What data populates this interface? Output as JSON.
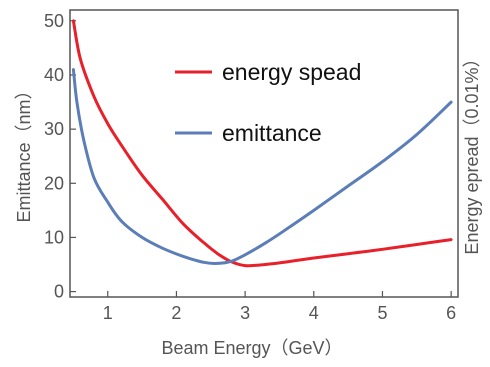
{
  "chart_data": {
    "type": "line",
    "xlabel": "Beam Energy（GeV）",
    "ylabel_left": "Emittance（nm）",
    "ylabel_right": "Energy epread（0.01%）",
    "xlim": [
      0.45,
      6.1
    ],
    "ylim": [
      -1,
      52
    ],
    "x_ticks": [
      1,
      2,
      3,
      4,
      5,
      6
    ],
    "y_ticks": [
      0,
      10,
      20,
      30,
      40,
      50
    ],
    "legend_placement": "top-center",
    "grid": false,
    "series": [
      {
        "name": "energy spead",
        "color": "#e8202a",
        "x": [
          0.5,
          0.6,
          0.8,
          1.0,
          1.2,
          1.5,
          1.8,
          2.1,
          2.4,
          2.6,
          2.8,
          3.0,
          3.2,
          3.5,
          4.0,
          4.5,
          5.0,
          5.5,
          6.0
        ],
        "y": [
          50,
          43,
          36,
          31,
          27,
          21.5,
          17,
          12.5,
          9,
          7,
          5.5,
          4.8,
          4.9,
          5.3,
          6.2,
          7,
          7.8,
          8.7,
          9.6
        ]
      },
      {
        "name": "emittance",
        "color": "#5b7db8",
        "x": [
          0.5,
          0.55,
          0.65,
          0.8,
          1.0,
          1.2,
          1.5,
          1.8,
          2.1,
          2.4,
          2.6,
          2.8,
          3.0,
          3.3,
          3.6,
          4.0,
          4.5,
          5.0,
          5.5,
          6.0
        ],
        "y": [
          41,
          35,
          28,
          21,
          16.5,
          13,
          10,
          8,
          6.5,
          5.4,
          5.2,
          5.6,
          6.8,
          9,
          11.5,
          15,
          19.5,
          24,
          29,
          35
        ]
      }
    ]
  }
}
